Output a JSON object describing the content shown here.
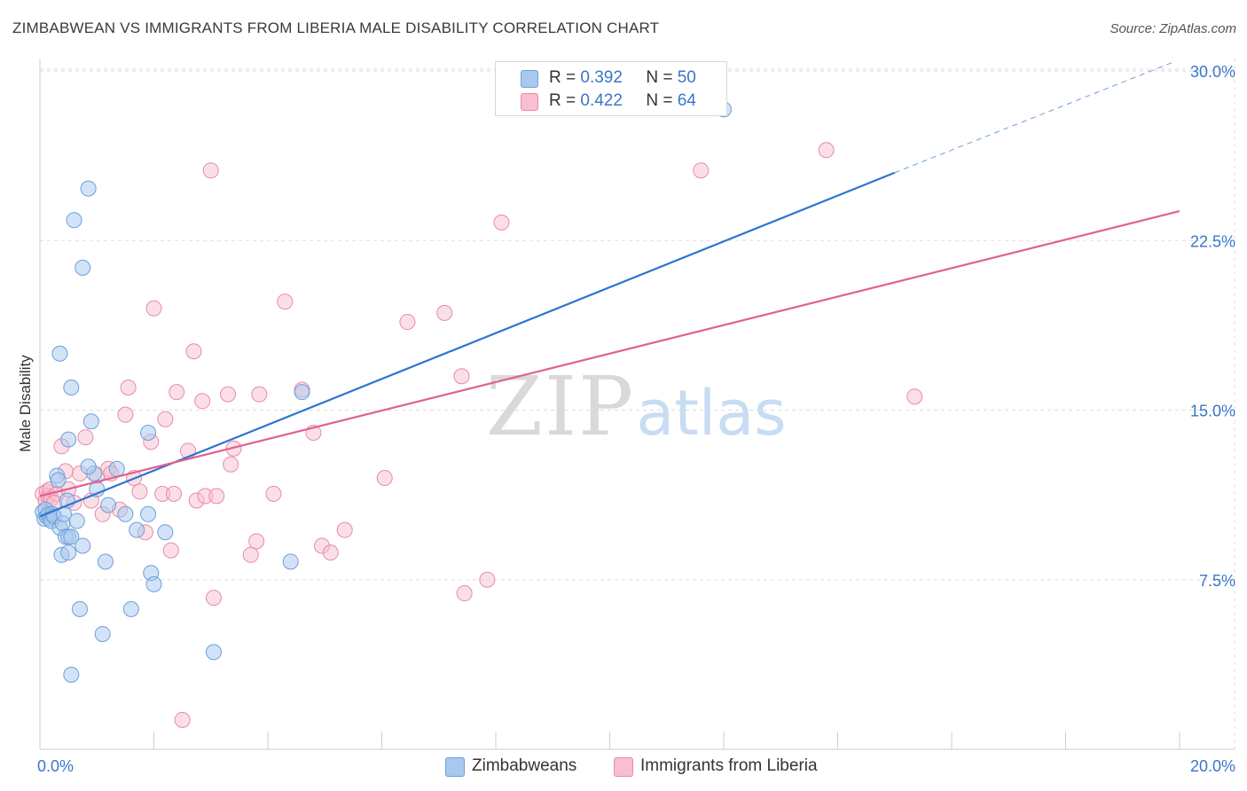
{
  "title": "ZIMBABWEAN VS IMMIGRANTS FROM LIBERIA MALE DISABILITY CORRELATION CHART",
  "source": "Source: ZipAtlas.com",
  "watermark": {
    "zip": "ZIP",
    "atlas": "atlas"
  },
  "legend": {
    "r_label": "R =",
    "n_label": "N =",
    "zimbabweans": {
      "r": "0.392",
      "n": "50"
    },
    "liberia": {
      "r": "0.422",
      "n": "64"
    }
  },
  "bottom_legend": {
    "zimbabweans": "Zimbabweans",
    "liberia": "Immigrants from Liberia"
  },
  "colors": {
    "blue_fill": "#a8c8f0",
    "blue_stroke": "#6e9fd8",
    "blue_line": "#2f74d0",
    "pink_fill": "#f7bfd0",
    "pink_stroke": "#e88aaa",
    "pink_line": "#e06090",
    "axis_text": "#3a76c8",
    "grid": "#dddddd"
  },
  "chart_data": {
    "type": "scatter",
    "title": "ZIMBABWEAN VS IMMIGRANTS FROM LIBERIA MALE DISABILITY CORRELATION CHART",
    "xlabel": "",
    "ylabel": "Male Disability",
    "xlim": [
      0,
      20
    ],
    "ylim": [
      0,
      31
    ],
    "x_tick_labels": [
      {
        "value": 0,
        "label": "0.0%"
      },
      {
        "value": 20,
        "label": "20.0%"
      }
    ],
    "y_tick_labels": [
      {
        "value": 7.5,
        "label": "7.5%"
      },
      {
        "value": 15,
        "label": "15.0%"
      },
      {
        "value": 22.5,
        "label": "22.5%"
      },
      {
        "value": 30,
        "label": "30.0%"
      }
    ],
    "series": [
      {
        "name": "Zimbabweans",
        "r": 0.392,
        "n": 50,
        "trend": {
          "x0": 0,
          "y0": 10.3,
          "x1": 15,
          "y1": 25.5,
          "dash_to_x": 19.9,
          "dash_to_y": 30.4
        },
        "points": [
          [
            0.05,
            10.5
          ],
          [
            0.08,
            10.2
          ],
          [
            0.1,
            10.6
          ],
          [
            0.12,
            10.3
          ],
          [
            0.15,
            10.4
          ],
          [
            0.18,
            10.2
          ],
          [
            0.2,
            10.1
          ],
          [
            0.22,
            10.4
          ],
          [
            0.25,
            10.3
          ],
          [
            0.3,
            12.1
          ],
          [
            0.32,
            11.9
          ],
          [
            0.35,
            9.8
          ],
          [
            0.38,
            8.6
          ],
          [
            0.4,
            10.0
          ],
          [
            0.42,
            10.4
          ],
          [
            0.45,
            9.4
          ],
          [
            0.48,
            11.0
          ],
          [
            0.5,
            9.4
          ],
          [
            0.5,
            8.7
          ],
          [
            0.55,
            9.4
          ],
          [
            0.6,
            23.4
          ],
          [
            0.65,
            10.1
          ],
          [
            0.7,
            6.2
          ],
          [
            0.75,
            9.0
          ],
          [
            0.85,
            24.8
          ],
          [
            0.9,
            14.5
          ],
          [
            0.95,
            12.2
          ],
          [
            1.0,
            11.5
          ],
          [
            1.1,
            5.1
          ],
          [
            1.15,
            8.3
          ],
          [
            1.2,
            10.8
          ],
          [
            1.35,
            12.4
          ],
          [
            1.5,
            10.4
          ],
          [
            1.6,
            6.2
          ],
          [
            1.7,
            9.7
          ],
          [
            1.9,
            14.0
          ],
          [
            1.9,
            10.4
          ],
          [
            1.95,
            7.8
          ],
          [
            2.0,
            7.3
          ],
          [
            2.2,
            9.6
          ],
          [
            3.05,
            4.3
          ],
          [
            4.4,
            8.3
          ],
          [
            4.6,
            15.8
          ],
          [
            12.0,
            28.3
          ],
          [
            0.75,
            21.3
          ],
          [
            0.35,
            17.5
          ],
          [
            0.55,
            16.0
          ],
          [
            0.5,
            13.7
          ],
          [
            0.55,
            3.3
          ],
          [
            0.85,
            12.5
          ]
        ]
      },
      {
        "name": "Immigrants from Liberia",
        "r": 0.422,
        "n": 64,
        "trend": {
          "x0": 0,
          "y0": 11.2,
          "x1": 20,
          "y1": 23.8
        },
        "points": [
          [
            0.05,
            11.3
          ],
          [
            0.1,
            11.0
          ],
          [
            0.12,
            11.4
          ],
          [
            0.15,
            11.2
          ],
          [
            0.18,
            11.5
          ],
          [
            0.2,
            11.1
          ],
          [
            0.3,
            11.3
          ],
          [
            0.38,
            13.4
          ],
          [
            0.45,
            12.3
          ],
          [
            0.5,
            11.5
          ],
          [
            0.6,
            10.9
          ],
          [
            0.7,
            12.2
          ],
          [
            0.8,
            13.8
          ],
          [
            0.9,
            11.0
          ],
          [
            1.0,
            12.1
          ],
          [
            1.1,
            10.4
          ],
          [
            1.2,
            12.4
          ],
          [
            1.25,
            12.2
          ],
          [
            1.4,
            10.6
          ],
          [
            1.5,
            14.8
          ],
          [
            1.55,
            16.0
          ],
          [
            1.65,
            12.0
          ],
          [
            1.75,
            11.4
          ],
          [
            1.85,
            9.6
          ],
          [
            1.95,
            13.6
          ],
          [
            2.0,
            19.5
          ],
          [
            2.15,
            11.3
          ],
          [
            2.2,
            14.6
          ],
          [
            2.3,
            8.8
          ],
          [
            2.35,
            11.3
          ],
          [
            2.4,
            15.8
          ],
          [
            2.6,
            13.2
          ],
          [
            2.7,
            17.6
          ],
          [
            2.75,
            11.0
          ],
          [
            2.85,
            15.4
          ],
          [
            2.9,
            11.2
          ],
          [
            3.0,
            25.6
          ],
          [
            3.05,
            6.7
          ],
          [
            3.1,
            11.2
          ],
          [
            3.3,
            15.7
          ],
          [
            3.35,
            12.6
          ],
          [
            3.4,
            13.3
          ],
          [
            3.7,
            8.6
          ],
          [
            3.8,
            9.2
          ],
          [
            3.85,
            15.7
          ],
          [
            4.1,
            11.3
          ],
          [
            4.3,
            19.8
          ],
          [
            4.6,
            15.9
          ],
          [
            4.8,
            14.0
          ],
          [
            4.95,
            9.0
          ],
          [
            5.1,
            8.7
          ],
          [
            5.35,
            9.7
          ],
          [
            6.05,
            12.0
          ],
          [
            6.45,
            18.9
          ],
          [
            7.1,
            19.3
          ],
          [
            7.4,
            16.5
          ],
          [
            7.45,
            6.9
          ],
          [
            7.85,
            7.5
          ],
          [
            8.1,
            23.3
          ],
          [
            11.6,
            25.6
          ],
          [
            13.8,
            26.5
          ],
          [
            15.35,
            15.6
          ],
          [
            2.5,
            1.3
          ],
          [
            0.25,
            10.9
          ]
        ]
      }
    ]
  }
}
